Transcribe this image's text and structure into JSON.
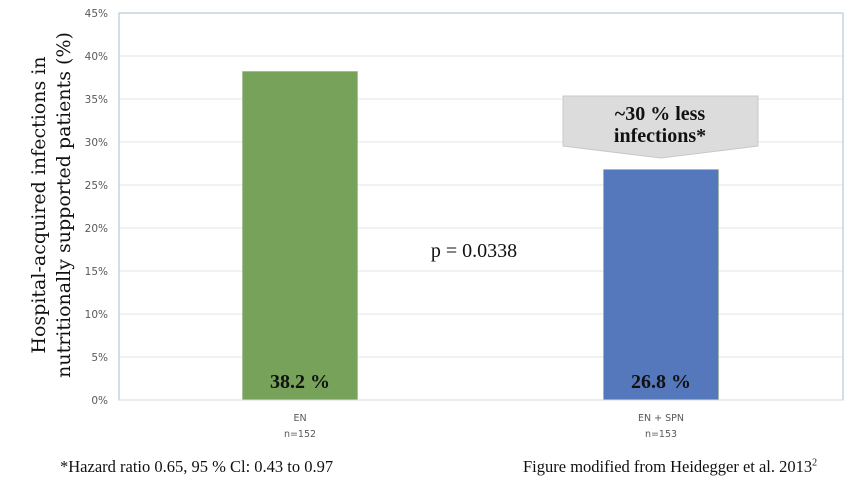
{
  "chart_data": {
    "type": "bar",
    "title": "",
    "ylabel_lines": [
      "Hospital-acquired infections in",
      "nutritionally supported patients (%)"
    ],
    "xlabel": "",
    "categories": [
      {
        "name": "EN",
        "n": "n=152"
      },
      {
        "name": "EN + SPN",
        "n": "n=153"
      }
    ],
    "values": [
      38.2,
      26.8
    ],
    "data_labels": [
      "38.2 %",
      "26.8 %"
    ],
    "colors": [
      "#77A25A",
      "#5578BC"
    ],
    "ylim": [
      0,
      45
    ],
    "yticks": [
      0,
      5,
      10,
      15,
      20,
      25,
      30,
      35,
      40,
      45
    ],
    "ytick_labels": [
      "0%",
      "5%",
      "10%",
      "15%",
      "20%",
      "25%",
      "30%",
      "35%",
      "40%",
      "45%"
    ],
    "grid": true,
    "annotations": {
      "p_value": "p = 0.0338",
      "callout_lines": [
        "~30 % less",
        "infections*"
      ]
    }
  },
  "footer": {
    "left": "*Hazard ratio  0.65, 95 % Cl: 0.43 to 0.97",
    "right": "Figure modified from Heidegger et al. 2013",
    "right_sup": "2"
  }
}
